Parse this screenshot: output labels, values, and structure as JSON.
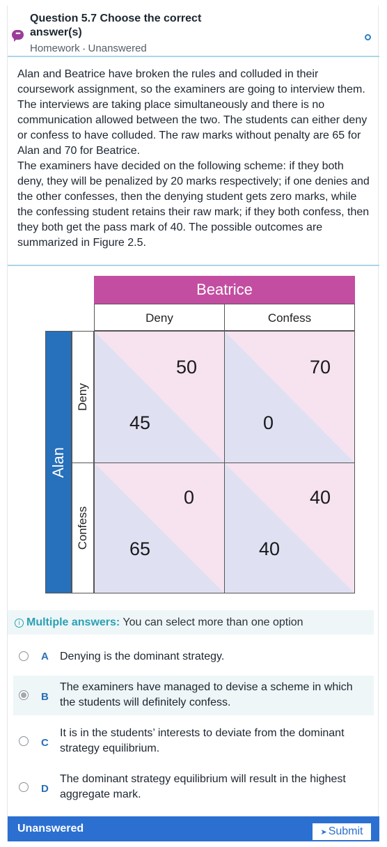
{
  "header": {
    "title": "Question 5.7 Choose the correct answer(s)",
    "meta_type": "Homework",
    "meta_sep": "•",
    "meta_status": "Unanswered"
  },
  "question_text": "Alan and Beatrice have broken the rules and colluded in their coursework assignment, so the examiners are going to interview them. The interviews are taking place simultaneously and there is no communication allowed between the two. The students can either deny or confess to have colluded. The raw marks without penalty are 65 for Alan and 70 for Beatrice.",
  "question_text_2": "The examiners have decided on the following scheme: if they both deny, they will be penalized by 20 marks respectively; if one denies and the other confesses, then the denying student gets zero marks, while the confessing student retains their raw mark; if they both confess, then they both get the pass mark of 40. The possible outcomes are summarized in Figure 2.5.",
  "matrix": {
    "column_player": "Beatrice",
    "row_player": "Alan",
    "columns": [
      "Deny",
      "Confess"
    ],
    "rows": [
      "Deny",
      "Confess"
    ],
    "payoffs": [
      {
        "beatrice": "50",
        "alan": "45"
      },
      {
        "beatrice": "70",
        "alan": "0"
      },
      {
        "beatrice": "0",
        "alan": "65"
      },
      {
        "beatrice": "40",
        "alan": "40"
      }
    ],
    "colors": {
      "column_header": "#c34ea1",
      "row_header": "#2770bb",
      "alan_triangle": "#dfe1f3",
      "beatrice_triangle": "#f6e3ef"
    }
  },
  "multiple": {
    "icon": "info-icon",
    "label": "Multiple answers:",
    "text": " You can select more than one option"
  },
  "options": [
    {
      "letter": "A",
      "text": "Denying is the dominant strategy.",
      "selected": false
    },
    {
      "letter": "B",
      "text": "The examiners have managed to devise a scheme in which the students will definitely confess.",
      "selected": true
    },
    {
      "letter": "C",
      "text": "It is in the students’ interests to deviate from the dominant strategy equilibrium.",
      "selected": false
    },
    {
      "letter": "D",
      "text": "The dominant strategy equilibrium will result in the highest aggregate mark.",
      "selected": false
    }
  ],
  "footer": {
    "status": "Unanswered",
    "submit_label": "Submit",
    "submit_icon": "send-icon"
  }
}
